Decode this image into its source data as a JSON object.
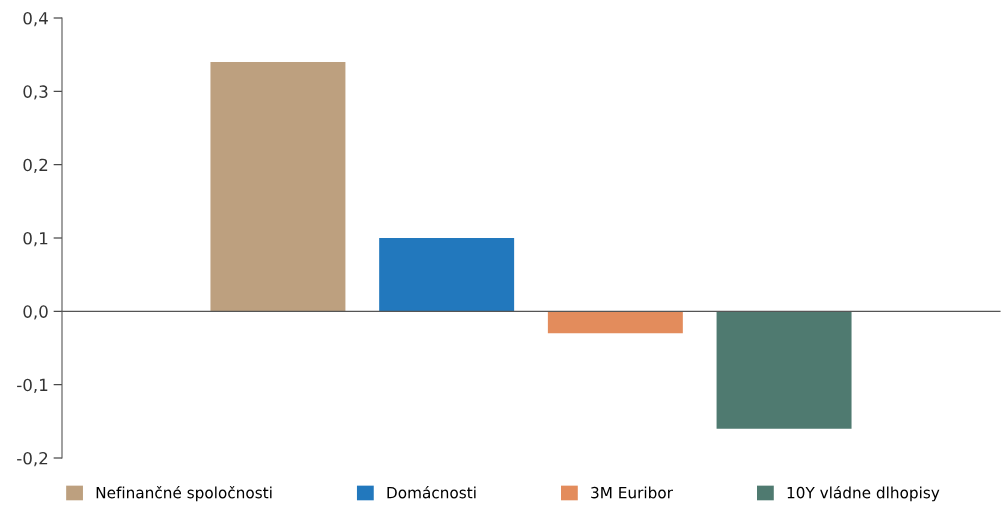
{
  "chart_data": {
    "type": "bar",
    "categories": [
      null
    ],
    "series": [
      {
        "name": "Nefinančné spoločnosti",
        "color": "#bda07f",
        "values": [
          0.34
        ]
      },
      {
        "name": "Domácnosti",
        "color": "#2278bd",
        "values": [
          0.1
        ]
      },
      {
        "name": "3M Euribor",
        "color": "#e38c5c",
        "values": [
          -0.03
        ]
      },
      {
        "name": "10Y vládne dlhopisy",
        "color": "#4f7a70",
        "values": [
          -0.16
        ]
      }
    ],
    "ylim": [
      -0.2,
      0.4
    ],
    "yticks": [
      {
        "value": -0.2,
        "label": "-0,2"
      },
      {
        "value": -0.1,
        "label": "-0,1"
      },
      {
        "value": 0.0,
        "label": "0,0"
      },
      {
        "value": 0.1,
        "label": "0,1"
      },
      {
        "value": 0.2,
        "label": "0,2"
      },
      {
        "value": 0.3,
        "label": "0,3"
      },
      {
        "value": 0.4,
        "label": "0,4"
      }
    ],
    "legend": "bottom"
  }
}
